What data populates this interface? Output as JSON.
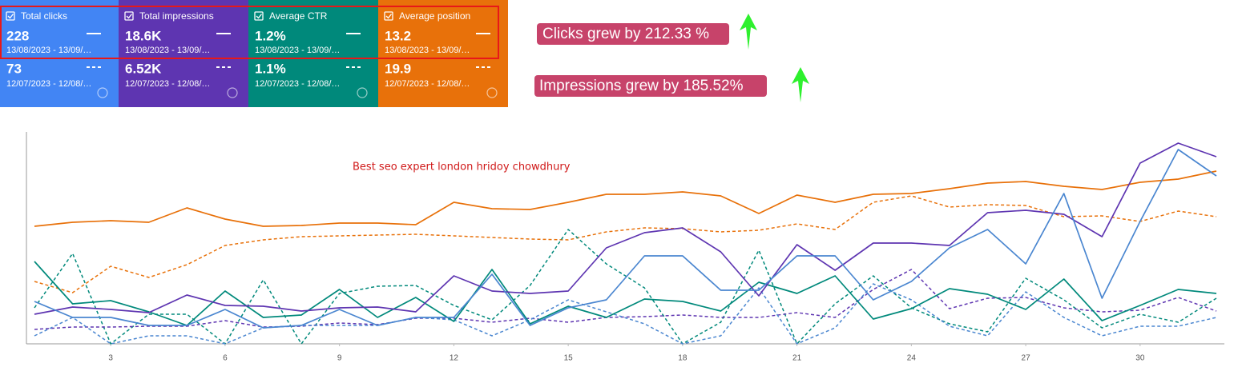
{
  "cards": [
    {
      "label": "Total clicks",
      "value": "228",
      "range": "13/08/2023 - 13/09/…",
      "prev_value": "73",
      "prev_range": "12/07/2023 - 12/08/…"
    },
    {
      "label": "Total impressions",
      "value": "18.6K",
      "range": "13/08/2023 - 13/09/…",
      "prev_value": "6.52K",
      "prev_range": "12/07/2023 - 12/08/…"
    },
    {
      "label": "Average CTR",
      "value": "1.2%",
      "range": "13/08/2023 - 13/09/…",
      "prev_value": "1.1%",
      "prev_range": "12/07/2023 - 12/08/…"
    },
    {
      "label": "Average position",
      "value": "13.2",
      "range": "13/08/2023 - 13/09/…",
      "prev_value": "19.9",
      "prev_range": "12/07/2023 - 12/08/…"
    }
  ],
  "annotations": [
    "Clicks grew by 212.33 %",
    "Impressions grew by 185.52%"
  ],
  "chart_data": {
    "type": "line",
    "title": "Best seo expert london hridoy chowdhury",
    "x": [
      1,
      2,
      3,
      4,
      5,
      6,
      7,
      8,
      9,
      10,
      11,
      12,
      13,
      14,
      15,
      16,
      17,
      18,
      19,
      20,
      21,
      22,
      23,
      24,
      25,
      26,
      27,
      28,
      29,
      30,
      31,
      32
    ],
    "xlim": [
      1,
      32
    ],
    "xticks": [
      3,
      6,
      9,
      12,
      15,
      18,
      21,
      24,
      27,
      30
    ],
    "ylim": [
      0,
      265
    ],
    "series": [
      {
        "color": "#e8710a",
        "dashed": true,
        "values": [
          78,
          64,
          97,
          83,
          99,
          123,
          130,
          134,
          135,
          136,
          137,
          135,
          133,
          131,
          130,
          140,
          145,
          144,
          140,
          142,
          150,
          143,
          177,
          185,
          171,
          174,
          173,
          159,
          160,
          153,
          166,
          159
        ]
      },
      {
        "color": "#00897b",
        "dashed": true,
        "values": [
          45,
          113,
          0,
          37,
          37,
          0,
          80,
          0,
          63,
          72,
          73,
          48,
          30,
          73,
          143,
          100,
          70,
          0,
          27,
          117,
          0,
          50,
          85,
          45,
          25,
          15,
          82,
          55,
          20,
          37,
          27,
          57
        ]
      },
      {
        "color": "#5e35b1",
        "dashed": true,
        "values": [
          18,
          21,
          21,
          22,
          22,
          29,
          21,
          22,
          26,
          24,
          32,
          32,
          27,
          32,
          27,
          33,
          34,
          36,
          33,
          33,
          39,
          33,
          68,
          93,
          44,
          57,
          58,
          45,
          40,
          42,
          58,
          41
        ]
      },
      {
        "color": "#4a86d0",
        "dashed": true,
        "values": [
          10,
          33,
          0,
          10,
          10,
          0,
          20,
          23,
          23,
          23,
          33,
          30,
          10,
          30,
          55,
          40,
          25,
          0,
          10,
          70,
          0,
          20,
          75,
          55,
          22,
          10,
          65,
          33,
          10,
          22,
          22,
          33
        ]
      },
      {
        "color": "#e8710a",
        "dashed": false,
        "values": [
          147,
          152,
          154,
          152,
          170,
          156,
          147,
          148,
          151,
          151,
          149,
          177,
          169,
          168,
          177,
          187,
          187,
          190,
          185,
          163,
          186,
          177,
          187,
          188,
          194,
          201,
          203,
          197,
          193,
          202,
          206,
          216
        ]
      },
      {
        "color": "#00897b",
        "dashed": false,
        "values": [
          103,
          50,
          54,
          40,
          23,
          66,
          33,
          36,
          68,
          33,
          58,
          28,
          93,
          25,
          47,
          33,
          56,
          53,
          41,
          77,
          63,
          85,
          31,
          44,
          69,
          62,
          43,
          81,
          29,
          48,
          68,
          63
        ]
      },
      {
        "color": "#5e35b1",
        "dashed": false,
        "values": [
          37,
          46,
          43,
          39,
          61,
          48,
          47,
          41,
          45,
          46,
          40,
          85,
          66,
          63,
          66,
          120,
          139,
          145,
          115,
          60,
          124,
          92,
          126,
          126,
          123,
          164,
          167,
          162,
          134,
          226,
          251,
          234
        ]
      },
      {
        "color": "#4a86d0",
        "dashed": false,
        "values": [
          53,
          33,
          33,
          23,
          23,
          43,
          20,
          23,
          43,
          23,
          33,
          33,
          87,
          23,
          45,
          55,
          110,
          110,
          67,
          67,
          110,
          110,
          55,
          78,
          120,
          143,
          100,
          188,
          57,
          153,
          243,
          210
        ]
      }
    ]
  }
}
